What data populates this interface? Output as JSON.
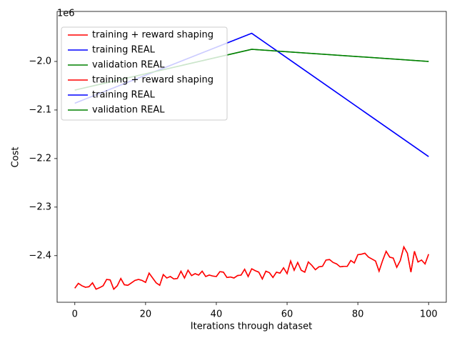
{
  "chart_data": {
    "type": "line",
    "xlabel": "Iterations through dataset",
    "ylabel": "Cost",
    "y_offset_label": "1e6",
    "xlim": [
      -5,
      105
    ],
    "xticks": [
      0,
      20,
      40,
      60,
      80,
      100
    ],
    "ylim": [
      -2496000,
      -1897000
    ],
    "yticks": [
      {
        "value": -2400000,
        "label": "−2.4"
      },
      {
        "value": -2300000,
        "label": "−2.3"
      },
      {
        "value": -2200000,
        "label": "−2.2"
      },
      {
        "value": -2100000,
        "label": "−2.1"
      },
      {
        "value": -2000000,
        "label": "−2.0"
      }
    ],
    "grid": false,
    "legend_position": "upper left",
    "series": [
      {
        "name": "training + reward shaping",
        "color": "#ff0000",
        "x": [
          0,
          1,
          2,
          3,
          4,
          5,
          6,
          7,
          8,
          9,
          10,
          11,
          12,
          13,
          14,
          15,
          16,
          17,
          18,
          19,
          20,
          21,
          22,
          23,
          24,
          25,
          26,
          27,
          28,
          29,
          30,
          31,
          32,
          33,
          34,
          35,
          36,
          37,
          38,
          39,
          40,
          41,
          42,
          43,
          44,
          45,
          46,
          47,
          48,
          49,
          50,
          51,
          52,
          53,
          54,
          55,
          56,
          57,
          58,
          59,
          60,
          61,
          62,
          63,
          64,
          65,
          66,
          67,
          68,
          69,
          70,
          71,
          72,
          73,
          74,
          75,
          76,
          77,
          78,
          79,
          80,
          81,
          82,
          83,
          84,
          85,
          86,
          87,
          88,
          89,
          90,
          91,
          92,
          93,
          94,
          95,
          96,
          97,
          98,
          99,
          100
        ],
        "values": [
          -2467000,
          -2457000,
          -2462000,
          -2465000,
          -2464000,
          -2456000,
          -2469000,
          -2466000,
          -2462000,
          -2449000,
          -2450000,
          -2469000,
          -2462000,
          -2447000,
          -2460000,
          -2461000,
          -2456000,
          -2451000,
          -2449000,
          -2451000,
          -2455000,
          -2436000,
          -2446000,
          -2456000,
          -2461000,
          -2439000,
          -2446000,
          -2443000,
          -2448000,
          -2447000,
          -2432000,
          -2446000,
          -2430000,
          -2441000,
          -2437000,
          -2440000,
          -2432000,
          -2443000,
          -2440000,
          -2442000,
          -2443000,
          -2433000,
          -2434000,
          -2445000,
          -2444000,
          -2446000,
          -2441000,
          -2440000,
          -2428000,
          -2443000,
          -2427000,
          -2431000,
          -2434000,
          -2448000,
          -2432000,
          -2435000,
          -2445000,
          -2434000,
          -2436000,
          -2425000,
          -2437000,
          -2411000,
          -2430000,
          -2414000,
          -2430000,
          -2434000,
          -2413000,
          -2420000,
          -2429000,
          -2423000,
          -2422000,
          -2409000,
          -2408000,
          -2414000,
          -2417000,
          -2423000,
          -2422000,
          -2422000,
          -2410000,
          -2415000,
          -2398000,
          -2397000,
          -2395000,
          -2403000,
          -2407000,
          -2411000,
          -2432000,
          -2410000,
          -2391000,
          -2403000,
          -2405000,
          -2424000,
          -2410000,
          -2382000,
          -2395000,
          -2434000,
          -2391000,
          -2413000,
          -2409000,
          -2417000,
          -2397000
        ]
      },
      {
        "name": "training REAL",
        "color": "#0000ff",
        "x": [
          0,
          50,
          100
        ],
        "values": [
          -2086000,
          -1942000,
          -2196000
        ]
      },
      {
        "name": "validation REAL",
        "color": "#008000",
        "x": [
          0,
          50,
          100
        ],
        "values": [
          -2059000,
          -1975000,
          -2000000
        ]
      },
      {
        "name": "training + reward shaping",
        "color": "#ff0000",
        "x": [
          0,
          1,
          2,
          3,
          4,
          5,
          6,
          7,
          8,
          9,
          10,
          11,
          12,
          13,
          14,
          15,
          16,
          17,
          18,
          19,
          20,
          21,
          22,
          23,
          24,
          25,
          26,
          27,
          28,
          29,
          30,
          31,
          32,
          33,
          34,
          35,
          36,
          37,
          38,
          39,
          40,
          41,
          42,
          43,
          44,
          45,
          46,
          47,
          48,
          49,
          50,
          51,
          52,
          53,
          54,
          55,
          56,
          57,
          58,
          59,
          60,
          61,
          62,
          63,
          64,
          65,
          66,
          67,
          68,
          69,
          70,
          71,
          72,
          73,
          74,
          75,
          76,
          77,
          78,
          79,
          80,
          81,
          82,
          83,
          84,
          85,
          86,
          87,
          88,
          89,
          90,
          91,
          92,
          93,
          94,
          95,
          96,
          97,
          98,
          99,
          100
        ],
        "values": [
          -2467000,
          -2457000,
          -2462000,
          -2465000,
          -2464000,
          -2456000,
          -2469000,
          -2466000,
          -2462000,
          -2449000,
          -2450000,
          -2469000,
          -2462000,
          -2447000,
          -2460000,
          -2461000,
          -2456000,
          -2451000,
          -2449000,
          -2451000,
          -2455000,
          -2436000,
          -2446000,
          -2456000,
          -2461000,
          -2439000,
          -2446000,
          -2443000,
          -2448000,
          -2447000,
          -2432000,
          -2446000,
          -2430000,
          -2441000,
          -2437000,
          -2440000,
          -2432000,
          -2443000,
          -2440000,
          -2442000,
          -2443000,
          -2433000,
          -2434000,
          -2445000,
          -2444000,
          -2446000,
          -2441000,
          -2440000,
          -2428000,
          -2443000,
          -2427000,
          -2431000,
          -2434000,
          -2448000,
          -2432000,
          -2435000,
          -2445000,
          -2434000,
          -2436000,
          -2425000,
          -2437000,
          -2411000,
          -2430000,
          -2414000,
          -2430000,
          -2434000,
          -2413000,
          -2420000,
          -2429000,
          -2423000,
          -2422000,
          -2409000,
          -2408000,
          -2414000,
          -2417000,
          -2423000,
          -2422000,
          -2422000,
          -2410000,
          -2415000,
          -2398000,
          -2397000,
          -2395000,
          -2403000,
          -2407000,
          -2411000,
          -2432000,
          -2410000,
          -2391000,
          -2403000,
          -2405000,
          -2424000,
          -2410000,
          -2382000,
          -2395000,
          -2434000,
          -2391000,
          -2413000,
          -2409000,
          -2417000,
          -2397000
        ]
      },
      {
        "name": "training REAL",
        "color": "#0000ff",
        "x": [
          0,
          50,
          100
        ],
        "values": [
          -2086000,
          -1942000,
          -2196000
        ]
      },
      {
        "name": "validation REAL",
        "color": "#008000",
        "x": [
          0,
          50,
          100
        ],
        "values": [
          -2059000,
          -1975000,
          -2000000
        ]
      }
    ]
  }
}
